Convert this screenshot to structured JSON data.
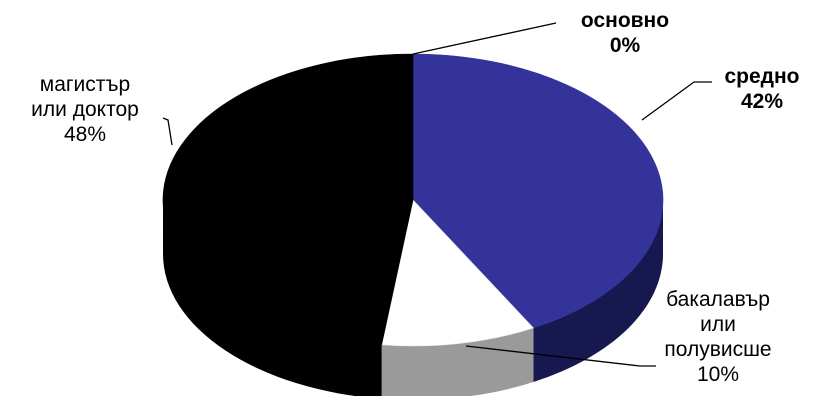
{
  "chart_data": {
    "type": "pie",
    "style": "3d",
    "legend": "none",
    "slices": [
      {
        "lines": [
          "основно"
        ],
        "percent_label": "0%",
        "value": 0,
        "color": "#2E2E8F",
        "bold": true
      },
      {
        "lines": [
          "средно"
        ],
        "percent_label": "42%",
        "value": 42,
        "color": "#33339A",
        "side_color": "#181850",
        "bold": true
      },
      {
        "lines": [
          "бакалавър",
          "или",
          "полувисше"
        ],
        "percent_label": "10%",
        "value": 10,
        "color": "#FFFFFF",
        "side_color": "#9A9A9A",
        "bold": false
      },
      {
        "lines": [
          "магистър",
          "или доктор"
        ],
        "percent_label": "48%",
        "value": 48,
        "color": "#000000",
        "side_color": "#000000",
        "bold": false
      }
    ]
  }
}
